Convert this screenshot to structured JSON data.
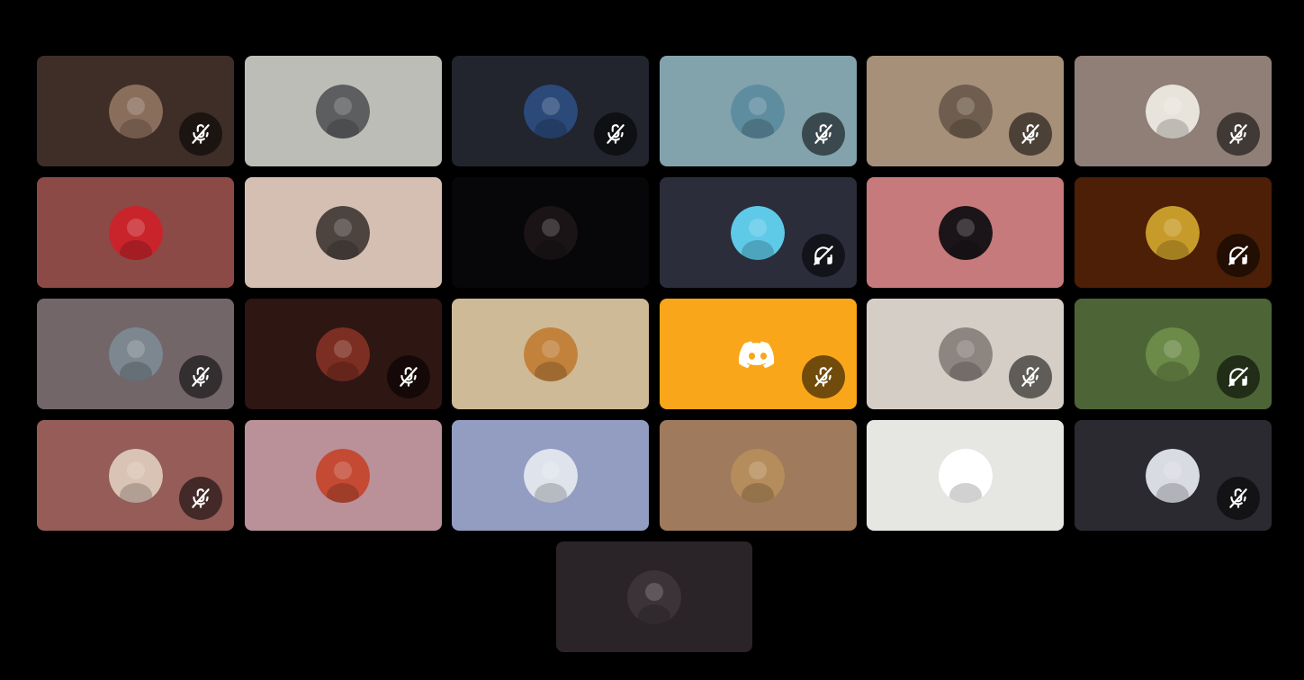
{
  "participants": [
    {
      "bg": "#3e2e27",
      "avatar": "#8a6e5c",
      "status": "muted"
    },
    {
      "bg": "#bcbdb6",
      "avatar": "#5c5e60",
      "status": "none"
    },
    {
      "bg": "#22252e",
      "avatar": "#2b4a7a",
      "status": "muted"
    },
    {
      "bg": "#82a3ac",
      "avatar": "#5f8da0",
      "status": "muted"
    },
    {
      "bg": "#a6907a",
      "avatar": "#6f5e4f",
      "status": "muted"
    },
    {
      "bg": "#8f7f77",
      "avatar": "#e8e4dc",
      "status": "muted"
    },
    {
      "bg": "#8b4a46",
      "avatar": "#c9242b",
      "status": "none"
    },
    {
      "bg": "#d5bfb3",
      "avatar": "#4d4440",
      "status": "none"
    },
    {
      "bg": "#070608",
      "avatar": "#1a1416",
      "status": "none"
    },
    {
      "bg": "#2c2d3a",
      "avatar": "#5fc9e8",
      "status": "deafened"
    },
    {
      "bg": "#c67a7b",
      "avatar": "#1b1519",
      "status": "none"
    },
    {
      "bg": "#4c1f06",
      "avatar": "#c79b2a",
      "status": "deafened"
    },
    {
      "bg": "#726669",
      "avatar": "#7d8790",
      "status": "muted"
    },
    {
      "bg": "#2e1613",
      "avatar": "#7d2e22",
      "status": "muted"
    },
    {
      "bg": "#ceba96",
      "avatar": "#c2823c",
      "status": "none"
    },
    {
      "bg": "#faa61a",
      "avatar": "discord",
      "status": "muted"
    },
    {
      "bg": "#d5cec6",
      "avatar": "#8c8580",
      "status": "muted"
    },
    {
      "bg": "#4d6536",
      "avatar": "#6c8a48",
      "status": "deafened"
    },
    {
      "bg": "#955c58",
      "avatar": "#d9c3b4",
      "status": "muted"
    },
    {
      "bg": "#ba9099",
      "avatar": "#c44a34",
      "status": "none"
    },
    {
      "bg": "#939dc2",
      "avatar": "#dfe3ec",
      "status": "none"
    },
    {
      "bg": "#a07a5c",
      "avatar": "#b58d5c",
      "status": "none"
    },
    {
      "bg": "#e6e6e2",
      "avatar": "#ffffff",
      "status": "none"
    },
    {
      "bg": "#2b2a30",
      "avatar": "#d8dbe2",
      "status": "muted"
    }
  ],
  "solo": {
    "bg": "#2a2428",
    "avatar": "#3b3338",
    "status": "none"
  },
  "colors": {
    "status_bg": "rgba(0,0,0,0.55)",
    "icon": "#ffffff",
    "discord_logo": "#ffffff"
  }
}
